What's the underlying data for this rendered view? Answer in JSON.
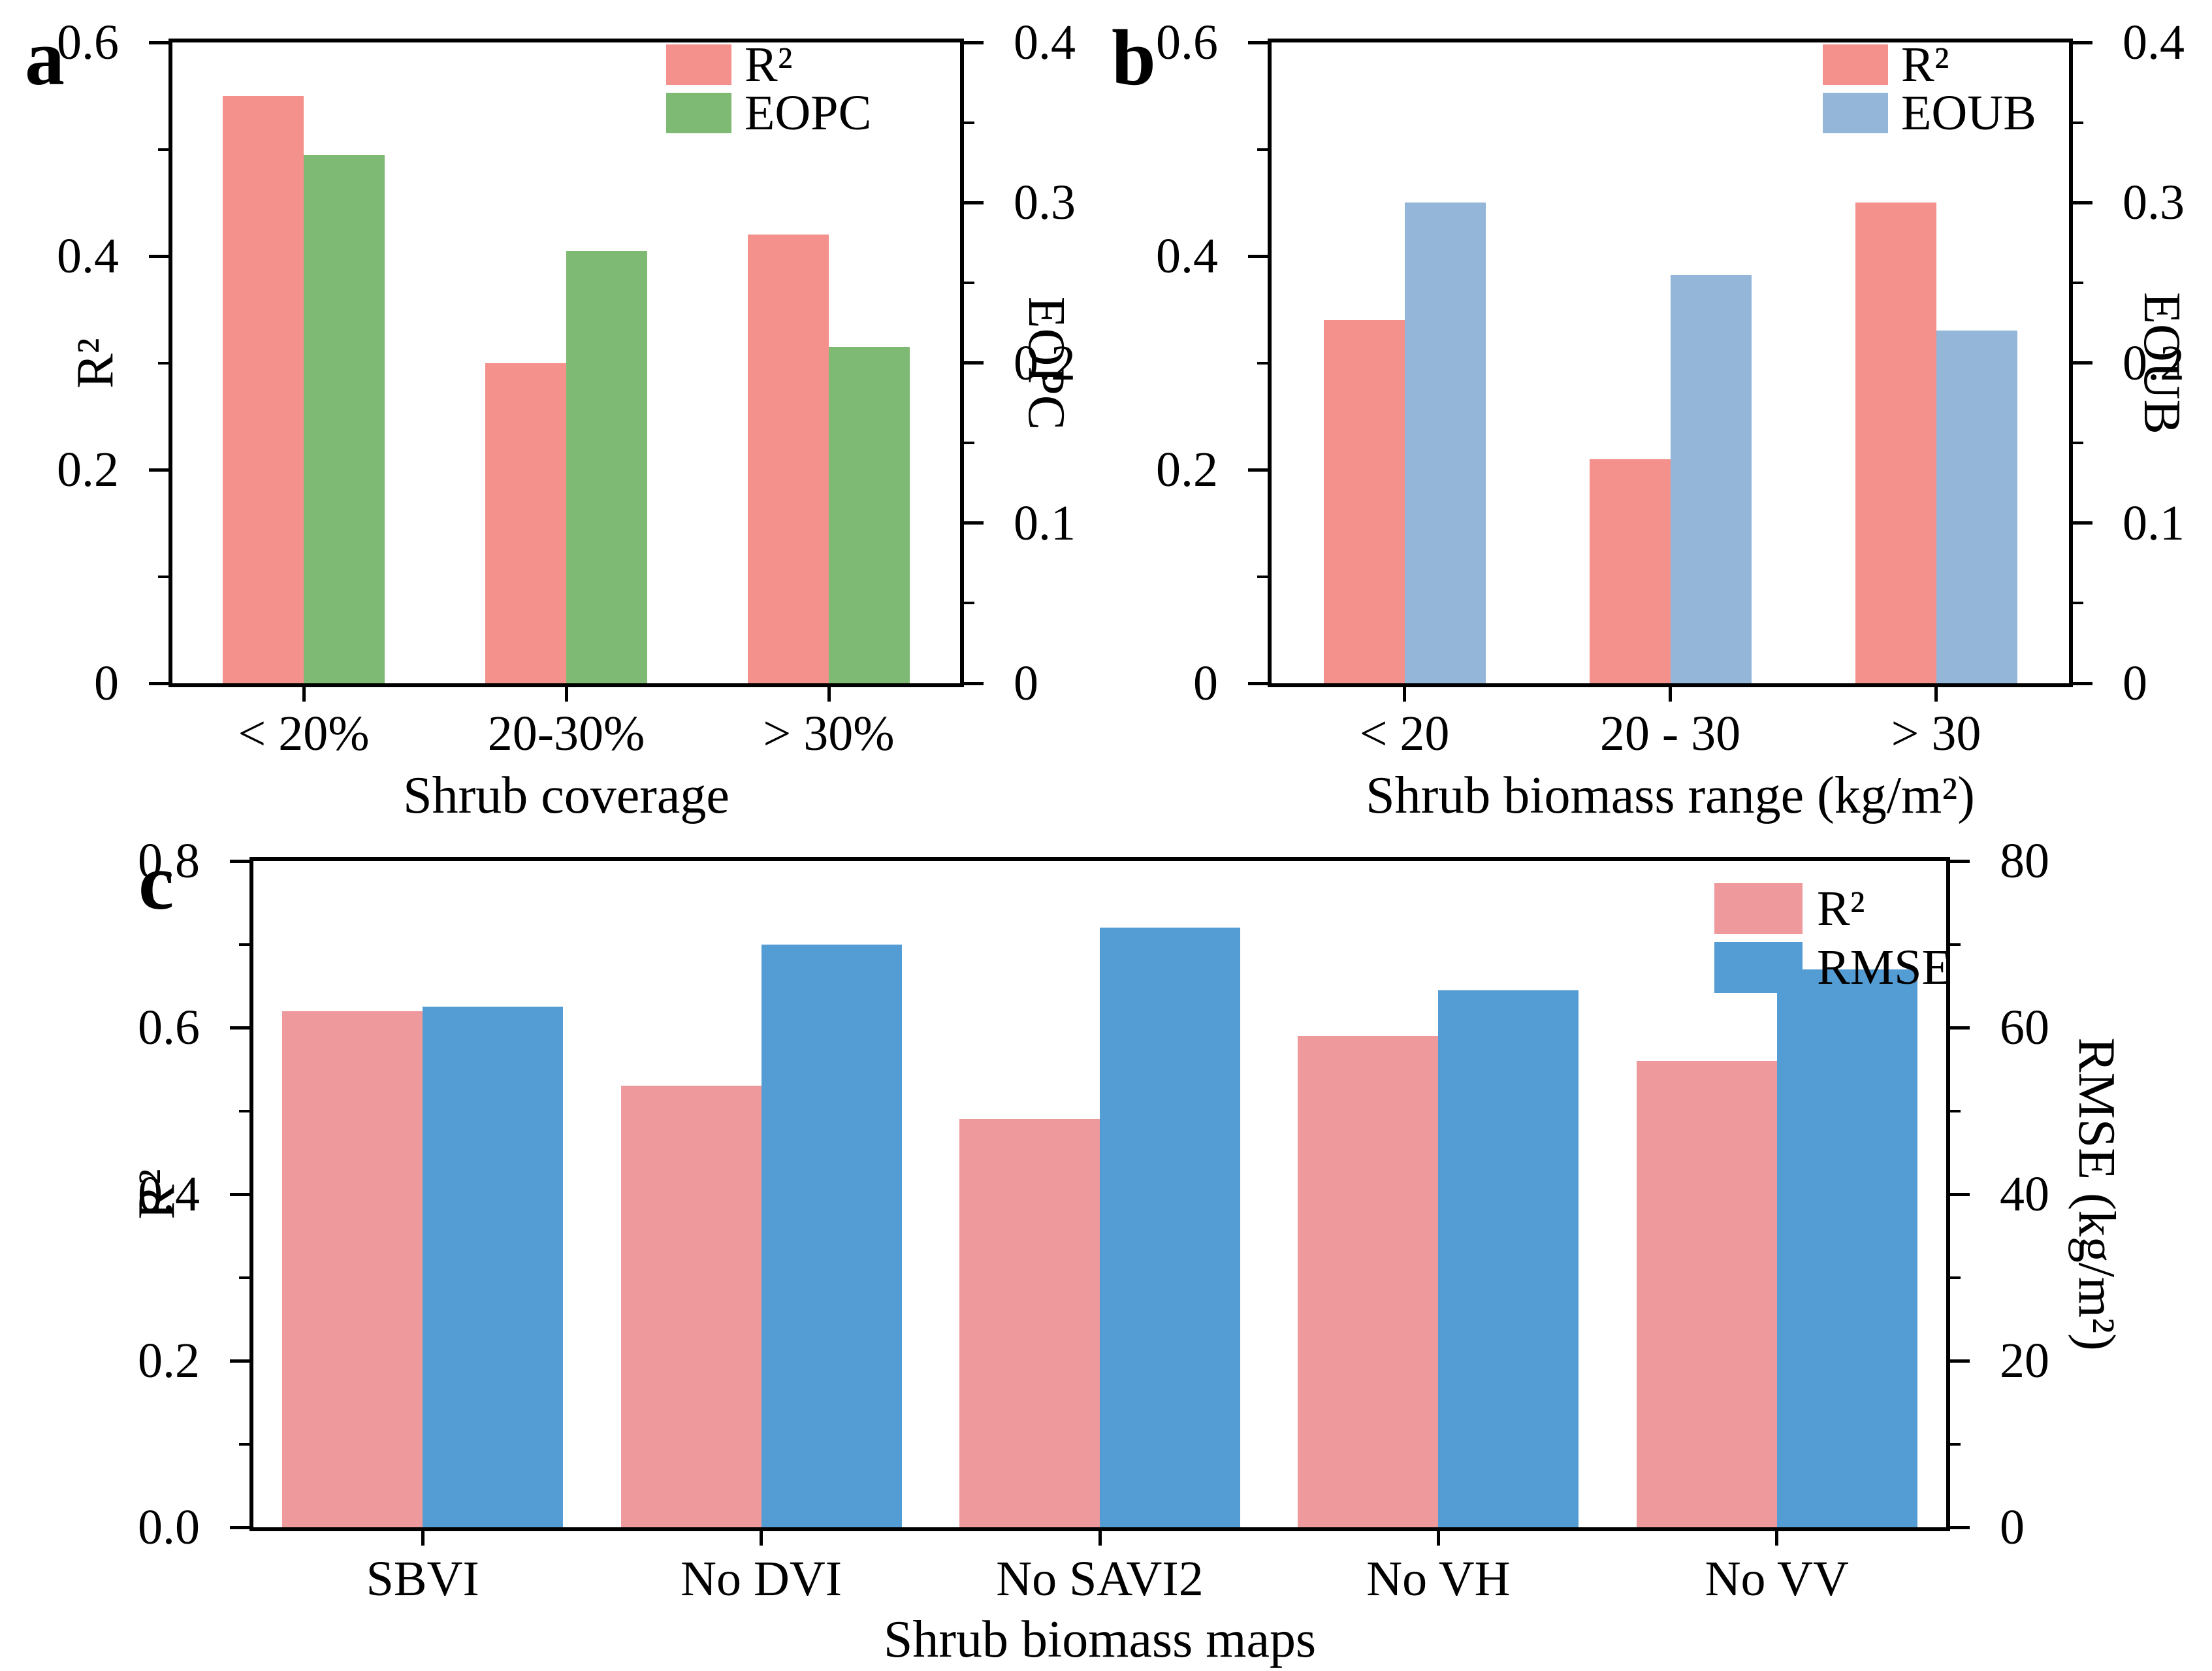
{
  "chart_data": [
    {
      "id": "a",
      "panel_label": "a",
      "type": "bar",
      "categories": [
        "< 20%",
        "20-30%",
        "> 30%"
      ],
      "series": [
        {
          "name": "R²",
          "axis": "left",
          "color": "#F4918C",
          "values": [
            0.55,
            0.3,
            0.42
          ]
        },
        {
          "name": "EOPC",
          "axis": "right",
          "color": "#7FBA74",
          "values": [
            0.33,
            0.27,
            0.21
          ]
        }
      ],
      "xlabel": "Shrub coverage",
      "ylabel_left": "R²",
      "ylabel_right": "EOPC",
      "ylim_left": [
        0,
        0.6
      ],
      "ylim_right": [
        0,
        0.4
      ],
      "yticks_left": [
        "0.6",
        "0.4",
        "0.2",
        "0"
      ],
      "yticks_right": [
        "0.4",
        "0.3",
        "0.2",
        "0.1",
        "0"
      ],
      "legend": [
        "R²",
        "EOPC"
      ],
      "legend_position": "top-right-inside",
      "grid": "off"
    },
    {
      "id": "b",
      "panel_label": "b",
      "type": "bar",
      "categories": [
        "< 20",
        "20 - 30",
        "> 30"
      ],
      "series": [
        {
          "name": "R²",
          "axis": "left",
          "color": "#F4918C",
          "values": [
            0.34,
            0.21,
            0.45
          ]
        },
        {
          "name": "EOUB",
          "axis": "right",
          "color": "#93B6D9",
          "values": [
            0.3,
            0.255,
            0.22
          ]
        }
      ],
      "xlabel": "Shrub biomass range (kg/m²)",
      "ylabel_left": "",
      "ylabel_right": "EOUB",
      "ylim_left": [
        0,
        0.6
      ],
      "ylim_right": [
        0,
        0.4
      ],
      "yticks_left": [
        "0.6",
        "0.4",
        "0.2",
        "0"
      ],
      "yticks_right": [
        "0.4",
        "0.3",
        "0.2",
        "0.1",
        "0"
      ],
      "legend": [
        "R²",
        "EOUB"
      ],
      "legend_position": "top-right-inside",
      "grid": "off"
    },
    {
      "id": "c",
      "panel_label": "c",
      "type": "bar",
      "categories": [
        "SBVI",
        "No DVI",
        "No SAVI2",
        "No VH",
        "No VV"
      ],
      "series": [
        {
          "name": "R²",
          "axis": "left",
          "color": "#EE999B",
          "values": [
            0.62,
            0.53,
            0.49,
            0.59,
            0.56
          ]
        },
        {
          "name": "RMSE",
          "axis": "right",
          "color": "#539DD4",
          "values": [
            62.5,
            70,
            72,
            64.5,
            67
          ]
        }
      ],
      "xlabel": "Shrub biomass maps",
      "ylabel_left": "R²",
      "ylabel_right": "RMSE (kg/m²)",
      "ylim_left": [
        0,
        0.8
      ],
      "ylim_right": [
        0,
        80
      ],
      "yticks_left": [
        "0.8",
        "0.6",
        "0.4",
        "0.2",
        "0.0"
      ],
      "yticks_right": [
        "80",
        "60",
        "40",
        "20",
        "0"
      ],
      "legend": [
        "R²",
        "RMSE"
      ],
      "legend_position": "top-right-inside",
      "grid": "off"
    }
  ]
}
